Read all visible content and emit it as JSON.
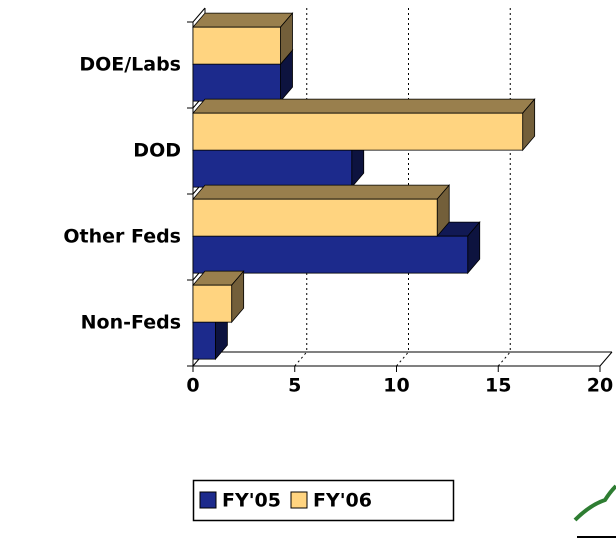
{
  "chart_data": {
    "type": "bar3d_horizontal",
    "categories": [
      "DOE/Labs",
      "DOD",
      "Other Feds",
      "Non-Feds"
    ],
    "series": [
      {
        "name": "FY'05",
        "color": "#1c2a8c",
        "values": [
          4.3,
          7.8,
          13.5,
          1.1
        ]
      },
      {
        "name": "FY'06",
        "color": "#ffd480",
        "values": [
          4.3,
          16.2,
          12.0,
          1.9
        ]
      }
    ],
    "xlim": [
      0,
      20
    ],
    "xticks": [
      0,
      5,
      10,
      15,
      20
    ],
    "grid": true,
    "legend": "bottom"
  }
}
